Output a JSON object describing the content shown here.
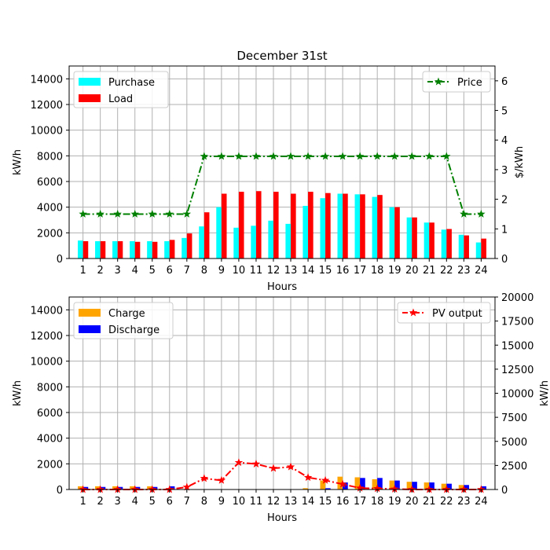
{
  "chart_data": [
    {
      "type": "bar",
      "title": "December 31st",
      "xlabel": "Hours",
      "ylabel": "kW/h",
      "ylabel_right": "$/kWh",
      "categories": [
        "1",
        "2",
        "3",
        "4",
        "5",
        "6",
        "7",
        "8",
        "9",
        "10",
        "11",
        "12",
        "13",
        "14",
        "15",
        "16",
        "17",
        "18",
        "19",
        "20",
        "21",
        "22",
        "23",
        "24"
      ],
      "ylim": [
        0,
        15000
      ],
      "yticks": [
        "0",
        "2000",
        "4000",
        "6000",
        "8000",
        "10000",
        "12000",
        "14000"
      ],
      "ylim_right": [
        0,
        6.5
      ],
      "yticks_right": [
        "0",
        "1",
        "2",
        "3",
        "4",
        "5",
        "6"
      ],
      "grid": true,
      "series": [
        {
          "name": "Purchase",
          "axis": "left",
          "color": "#00ffff",
          "values": [
            1400,
            1350,
            1350,
            1350,
            1350,
            1350,
            1600,
            2500,
            4000,
            2400,
            2550,
            2950,
            2700,
            4100,
            4700,
            5050,
            5000,
            4800,
            4000,
            3200,
            2800,
            2250,
            1850,
            1250
          ]
        },
        {
          "name": "Load",
          "axis": "left",
          "color": "#ff0000",
          "values": [
            1350,
            1350,
            1350,
            1300,
            1300,
            1450,
            1950,
            3600,
            5050,
            5200,
            5250,
            5200,
            5050,
            5200,
            5100,
            5050,
            5000,
            4950,
            4000,
            3200,
            2800,
            2300,
            1800,
            1550
          ]
        },
        {
          "name": "Price",
          "axis": "right",
          "type": "line",
          "color": "#008000",
          "values": [
            1.5,
            1.5,
            1.5,
            1.5,
            1.5,
            1.5,
            1.5,
            3.45,
            3.45,
            3.45,
            3.45,
            3.45,
            3.45,
            3.45,
            3.45,
            3.45,
            3.45,
            3.45,
            3.45,
            3.45,
            3.45,
            3.45,
            1.5,
            1.5
          ]
        }
      ],
      "legend_left": "upper-left",
      "legend_right": "upper-right"
    },
    {
      "type": "bar",
      "title": "",
      "xlabel": "Hours",
      "ylabel": "kW/h",
      "ylabel_right": "kW/h",
      "categories": [
        "1",
        "2",
        "3",
        "4",
        "5",
        "6",
        "7",
        "8",
        "9",
        "10",
        "11",
        "12",
        "13",
        "14",
        "15",
        "16",
        "17",
        "18",
        "19",
        "20",
        "21",
        "22",
        "23",
        "24"
      ],
      "ylim": [
        0,
        15000
      ],
      "yticks": [
        "0",
        "2000",
        "4000",
        "6000",
        "8000",
        "10000",
        "12000",
        "14000"
      ],
      "ylim_right": [
        0,
        20000
      ],
      "yticks_right": [
        "0",
        "2500",
        "5000",
        "7500",
        "10000",
        "12500",
        "15000",
        "17500",
        "20000"
      ],
      "grid": true,
      "series": [
        {
          "name": "Charge",
          "axis": "left",
          "color": "#ffa500",
          "values": [
            250,
            250,
            250,
            250,
            250,
            50,
            0,
            0,
            0,
            0,
            0,
            0,
            0,
            100,
            700,
            1000,
            950,
            800,
            700,
            600,
            550,
            450,
            350,
            0
          ]
        },
        {
          "name": "Discharge",
          "axis": "left",
          "color": "#0000ff",
          "values": [
            200,
            200,
            200,
            200,
            200,
            250,
            0,
            0,
            0,
            0,
            0,
            0,
            0,
            0,
            100,
            550,
            900,
            900,
            700,
            600,
            550,
            450,
            350,
            250
          ]
        },
        {
          "name": "PV output",
          "axis": "right",
          "type": "line",
          "color": "#ff0000",
          "values": [
            0,
            0,
            0,
            0,
            0,
            0,
            250,
            1150,
            950,
            2800,
            2650,
            2200,
            2350,
            1250,
            950,
            550,
            150,
            100,
            50,
            0,
            0,
            0,
            0,
            0
          ]
        }
      ],
      "legend_left": "upper-left",
      "legend_right": "upper-right"
    }
  ]
}
